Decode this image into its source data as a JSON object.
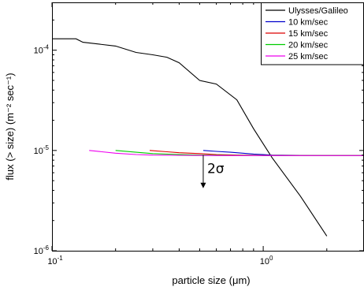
{
  "chart_data": {
    "type": "line",
    "x_scale": "log",
    "y_scale": "log",
    "xlim": [
      0.1,
      3
    ],
    "ylim": [
      1e-06,
      0.0003
    ],
    "x_ticks": [
      {
        "value": 0.1,
        "base": "10",
        "exp": "-1"
      },
      {
        "value": 1,
        "base": "10",
        "exp": "0"
      }
    ],
    "y_ticks": [
      {
        "value": 1e-06,
        "base": "10",
        "exp": "-6"
      },
      {
        "value": 1e-05,
        "base": "10",
        "exp": "-5"
      },
      {
        "value": 0.0001,
        "base": "10",
        "exp": "-4"
      }
    ],
    "xlabel": "particle size (μm)",
    "ylabel": "flux (> size)  (m⁻² sec⁻¹)",
    "legend_position": "top-right",
    "series": [
      {
        "name": "Ulysses/Galileo",
        "color": "#000000",
        "x": [
          0.1,
          0.13,
          0.14,
          0.2,
          0.25,
          0.3,
          0.35,
          0.4,
          0.5,
          0.6,
          0.75,
          0.9,
          1.1,
          1.5,
          2.0
        ],
        "y": [
          0.00013,
          0.00013,
          0.00012,
          0.00011,
          9.5e-05,
          9e-05,
          8.5e-05,
          7.5e-05,
          5e-05,
          4.6e-05,
          3.2e-05,
          1.65e-05,
          8.5e-06,
          3.5e-06,
          1.4e-06
        ]
      },
      {
        "name": "10 km/sec",
        "color": "#0000cc",
        "x": [
          0.52,
          0.6,
          0.7,
          0.8,
          0.9,
          1.0,
          1.1,
          1.5,
          2.0,
          3.0
        ],
        "y": [
          1e-05,
          9.8e-06,
          9.6e-06,
          9.4e-06,
          9.2e-06,
          9.1e-06,
          9e-06,
          8.95e-06,
          8.9e-06,
          8.9e-06
        ]
      },
      {
        "name": "15 km/sec",
        "color": "#dd0000",
        "x": [
          0.29,
          0.35,
          0.4,
          0.5,
          0.6,
          0.75,
          1.0,
          1.5,
          2.0,
          3.0
        ],
        "y": [
          1e-05,
          9.7e-06,
          9.5e-06,
          9.3e-06,
          9.1e-06,
          9e-06,
          8.95e-06,
          8.9e-06,
          8.9e-06,
          8.9e-06
        ]
      },
      {
        "name": "20 km/sec",
        "color": "#00cc00",
        "x": [
          0.2,
          0.25,
          0.3,
          0.4,
          0.5,
          0.7,
          1.0,
          1.5,
          2.0,
          3.0
        ],
        "y": [
          1e-05,
          9.6e-06,
          9.3e-06,
          9.1e-06,
          9e-06,
          8.95e-06,
          8.9e-06,
          8.9e-06,
          8.9e-06,
          8.9e-06
        ]
      },
      {
        "name": "25 km/sec",
        "color": "#ee00ee",
        "x": [
          0.15,
          0.2,
          0.25,
          0.3,
          0.4,
          0.6,
          1.0,
          1.5,
          2.0,
          3.0
        ],
        "y": [
          1e-05,
          9.4e-06,
          9.1e-06,
          9e-06,
          8.95e-06,
          8.9e-06,
          8.9e-06,
          8.9e-06,
          8.9e-06,
          8.9e-06
        ]
      }
    ],
    "annotation": {
      "text": "2σ",
      "arrow_x": 0.52,
      "arrow_y_from": 9e-06,
      "arrow_y_to": 4.2e-06
    }
  }
}
